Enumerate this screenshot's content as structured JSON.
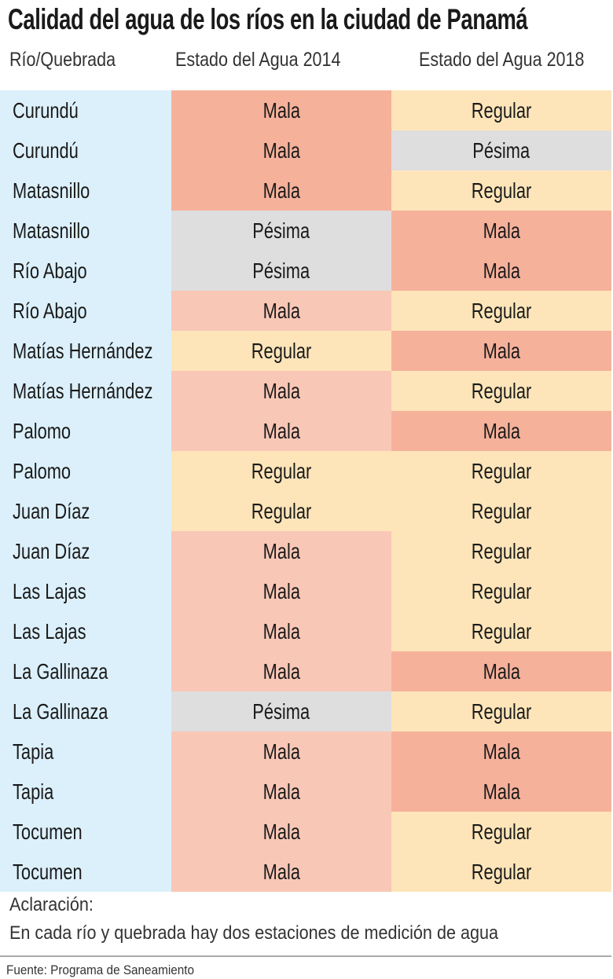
{
  "title": "Calidad del agua de los ríos en la ciudad de Panamá",
  "headers": [
    "Río/Quebrada",
    "Estado del Agua 2014",
    "Estado del Agua 2018"
  ],
  "colors": {
    "rio": "#dcf0fb",
    "Mala_dark": "#f6b19b",
    "Mala_light": "#f9c7b6",
    "Regular": "#fde5b9",
    "Pésima": "#dedede"
  },
  "rows": [
    {
      "rio": "Curundú",
      "e2014": "Mala",
      "c2014": "#f6b19b",
      "e2018": "Regular",
      "c2018": "#fde5b9"
    },
    {
      "rio": "Curundú",
      "e2014": "Mala",
      "c2014": "#f6b19b",
      "e2018": "Pésima",
      "c2018": "#dedede"
    },
    {
      "rio": "Matasnillo",
      "e2014": "Mala",
      "c2014": "#f6b19b",
      "e2018": "Regular",
      "c2018": "#fde5b9"
    },
    {
      "rio": "Matasnillo",
      "e2014": "Pésima",
      "c2014": "#dedede",
      "e2018": "Mala",
      "c2018": "#f6b19b"
    },
    {
      "rio": "Río Abajo",
      "e2014": "Pésima",
      "c2014": "#dedede",
      "e2018": "Mala",
      "c2018": "#f6b19b"
    },
    {
      "rio": "Río Abajo",
      "e2014": "Mala",
      "c2014": "#f9c7b6",
      "e2018": "Regular",
      "c2018": "#fde5b9"
    },
    {
      "rio": "Matías Hernández",
      "e2014": "Regular",
      "c2014": "#fde5b9",
      "e2018": "Mala",
      "c2018": "#f6b19b"
    },
    {
      "rio": "Matías Hernández",
      "e2014": "Mala",
      "c2014": "#f9c7b6",
      "e2018": "Regular",
      "c2018": "#fde5b9"
    },
    {
      "rio": "Palomo",
      "e2014": "Mala",
      "c2014": "#f9c7b6",
      "e2018": "Mala",
      "c2018": "#f6b19b"
    },
    {
      "rio": "Palomo",
      "e2014": "Regular",
      "c2014": "#fde5b9",
      "e2018": "Regular",
      "c2018": "#fde5b9"
    },
    {
      "rio": "Juan Díaz",
      "e2014": "Regular",
      "c2014": "#fde5b9",
      "e2018": "Regular",
      "c2018": "#fde5b9"
    },
    {
      "rio": "Juan Díaz",
      "e2014": "Mala",
      "c2014": "#f9c7b6",
      "e2018": "Regular",
      "c2018": "#fde5b9"
    },
    {
      "rio": "Las Lajas",
      "e2014": "Mala",
      "c2014": "#f9c7b6",
      "e2018": "Regular",
      "c2018": "#fde5b9"
    },
    {
      "rio": "Las Lajas",
      "e2014": "Mala",
      "c2014": "#f9c7b6",
      "e2018": "Regular",
      "c2018": "#fde5b9"
    },
    {
      "rio": "La Gallinaza",
      "e2014": "Mala",
      "c2014": "#f9c7b6",
      "e2018": "Mala",
      "c2018": "#f6b19b"
    },
    {
      "rio": "La Gallinaza",
      "e2014": "Pésima",
      "c2014": "#dedede",
      "e2018": "Regular",
      "c2018": "#fde5b9"
    },
    {
      "rio": "Tapia",
      "e2014": "Mala",
      "c2014": "#f9c7b6",
      "e2018": "Mala",
      "c2018": "#f6b19b"
    },
    {
      "rio": "Tapia",
      "e2014": "Mala",
      "c2014": "#f9c7b6",
      "e2018": "Mala",
      "c2018": "#f6b19b"
    },
    {
      "rio": "Tocumen",
      "e2014": "Mala",
      "c2014": "#f9c7b6",
      "e2018": "Regular",
      "c2018": "#fde5b9"
    },
    {
      "rio": "Tocumen",
      "e2014": "Mala",
      "c2014": "#f9c7b6",
      "e2018": "Regular",
      "c2018": "#fde5b9"
    }
  ],
  "note": {
    "label": "Aclaración:",
    "text": "En cada río y quebrada hay dos estaciones de medición de agua"
  },
  "source": "Fuente: Programa de Saneamiento"
}
